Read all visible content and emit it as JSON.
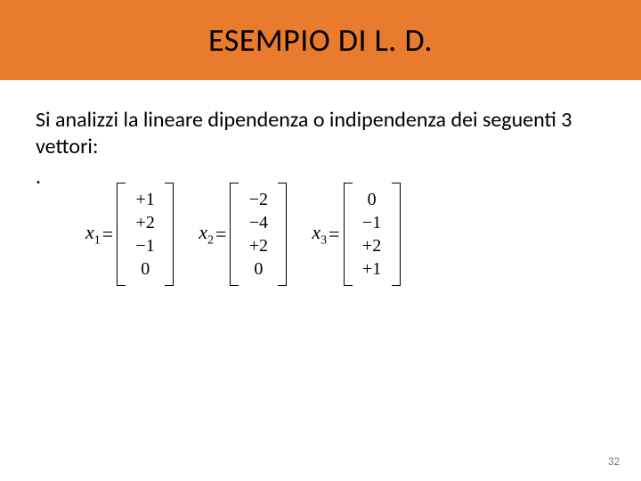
{
  "title_bar": {
    "text": "ESEMPIO DI L. D.",
    "background_color": "#e87b2e",
    "text_color": "#000000",
    "font_size": 36
  },
  "body": {
    "paragraph": "Si analizzi la lineare dipendenza o indipendenza dei seguenti 3 vettori:",
    "dot": ".",
    "text_color": "#000000",
    "font_size": 24
  },
  "vectors": {
    "font_family": "Times New Roman",
    "label_fontsize": 22,
    "entry_fontsize": 20,
    "items": [
      {
        "label": "x",
        "subscript": "1",
        "equals": "=",
        "entries": [
          "+1",
          "+2",
          "−1",
          "0"
        ]
      },
      {
        "label": "x",
        "subscript": "2",
        "equals": "=",
        "entries": [
          "−2",
          "−4",
          "+2",
          "0"
        ]
      },
      {
        "label": "x",
        "subscript": "3",
        "equals": "=",
        "entries": [
          "0",
          "−1",
          "+2",
          "+1"
        ]
      }
    ]
  },
  "page_number": "32",
  "colors": {
    "page_bg": "#ffffff",
    "page_num": "#7a7a7a",
    "bracket": "#000000"
  }
}
